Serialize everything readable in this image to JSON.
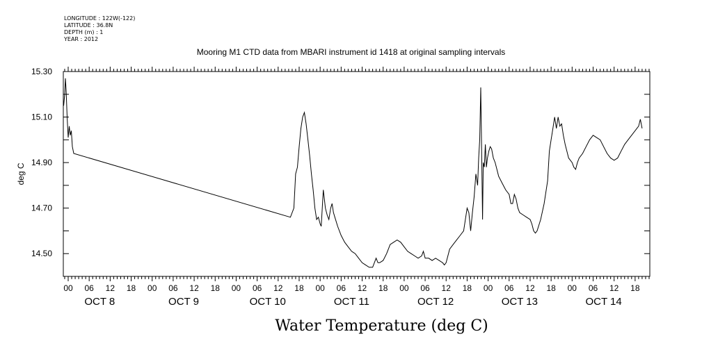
{
  "header": {
    "longitude": "LONGITUDE : 122W(-122)",
    "latitude": "LATITUDE : 36.8N",
    "depth": "DEPTH (m) : 1",
    "year": "YEAR : 2012"
  },
  "chart_data": {
    "type": "line",
    "title": "Mooring M1 CTD data from MBARI instrument id 1418 at original sampling intervals",
    "ylabel": "deg C",
    "xlabel": "Water Temperature (deg C)",
    "ylim": [
      14.4,
      15.3
    ],
    "yticks": [
      14.5,
      14.7,
      14.9,
      15.1,
      15.3
    ],
    "ytick_labels": [
      "14.50",
      "14.70",
      "14.90",
      "15.10",
      "15.30"
    ],
    "x_unit": "hours since 00:00 OCT 8",
    "xlim": [
      -1.5,
      166
    ],
    "hour_ticks": [
      0,
      6,
      12,
      18,
      24,
      30,
      36,
      42,
      48,
      54,
      60,
      66,
      72,
      78,
      84,
      90,
      96,
      102,
      108,
      114,
      120,
      126,
      132,
      138,
      144,
      150,
      156,
      162
    ],
    "hour_tick_labels": [
      "00",
      "06",
      "12",
      "18",
      "00",
      "06",
      "12",
      "18",
      "00",
      "06",
      "12",
      "18",
      "00",
      "06",
      "12",
      "18",
      "00",
      "06",
      "12",
      "18",
      "00",
      "06",
      "12",
      "18",
      "00",
      "06",
      "12",
      "18"
    ],
    "day_labels": [
      {
        "label": "OCT  8",
        "hour": 9
      },
      {
        "label": "OCT  9",
        "hour": 33
      },
      {
        "label": "OCT 10",
        "hour": 57
      },
      {
        "label": "OCT 11",
        "hour": 81
      },
      {
        "label": "OCT 12",
        "hour": 105
      },
      {
        "label": "OCT 13",
        "hour": 129
      },
      {
        "label": "OCT 14",
        "hour": 153
      }
    ],
    "series": [
      {
        "color": "#000000",
        "points": [
          [
            -1.3,
            15.15
          ],
          [
            -1.0,
            15.2
          ],
          [
            -0.8,
            15.27
          ],
          [
            -0.6,
            15.22
          ],
          [
            -0.3,
            15.1
          ],
          [
            0.0,
            15.01
          ],
          [
            0.3,
            15.06
          ],
          [
            0.6,
            15.02
          ],
          [
            0.9,
            15.04
          ],
          [
            1.2,
            14.97
          ],
          [
            1.6,
            14.94
          ],
          [
            63.5,
            14.66
          ],
          [
            64.5,
            14.7
          ],
          [
            65.0,
            14.85
          ],
          [
            65.5,
            14.88
          ],
          [
            66.0,
            14.97
          ],
          [
            66.5,
            15.05
          ],
          [
            67.0,
            15.1
          ],
          [
            67.5,
            15.12
          ],
          [
            68.0,
            15.07
          ],
          [
            68.5,
            15.0
          ],
          [
            69.0,
            14.93
          ],
          [
            69.5,
            14.85
          ],
          [
            70.0,
            14.78
          ],
          [
            70.5,
            14.7
          ],
          [
            71.0,
            14.65
          ],
          [
            71.5,
            14.66
          ],
          [
            72.0,
            14.63
          ],
          [
            72.3,
            14.62
          ],
          [
            72.6,
            14.7
          ],
          [
            72.9,
            14.78
          ],
          [
            73.2,
            14.74
          ],
          [
            73.5,
            14.7
          ],
          [
            74.0,
            14.67
          ],
          [
            74.5,
            14.65
          ],
          [
            75.0,
            14.7
          ],
          [
            75.4,
            14.72
          ],
          [
            75.8,
            14.68
          ],
          [
            76.2,
            14.66
          ],
          [
            77.0,
            14.62
          ],
          [
            78.0,
            14.58
          ],
          [
            79.0,
            14.55
          ],
          [
            80.0,
            14.53
          ],
          [
            81.0,
            14.51
          ],
          [
            82.0,
            14.5
          ],
          [
            83.0,
            14.48
          ],
          [
            84.0,
            14.46
          ],
          [
            85.0,
            14.45
          ],
          [
            86.0,
            14.44
          ],
          [
            87.0,
            14.44
          ],
          [
            87.5,
            14.46
          ],
          [
            88.0,
            14.48
          ],
          [
            88.5,
            14.46
          ],
          [
            89.0,
            14.46
          ],
          [
            90.0,
            14.47
          ],
          [
            91.0,
            14.5
          ],
          [
            92.0,
            14.54
          ],
          [
            93.0,
            14.55
          ],
          [
            94.0,
            14.56
          ],
          [
            95.0,
            14.55
          ],
          [
            96.0,
            14.53
          ],
          [
            97.0,
            14.51
          ],
          [
            98.0,
            14.5
          ],
          [
            99.0,
            14.49
          ],
          [
            100.0,
            14.48
          ],
          [
            101.0,
            14.49
          ],
          [
            101.5,
            14.51
          ],
          [
            102.0,
            14.48
          ],
          [
            103.0,
            14.48
          ],
          [
            104.0,
            14.47
          ],
          [
            105.0,
            14.48
          ],
          [
            106.0,
            14.47
          ],
          [
            107.0,
            14.46
          ],
          [
            107.5,
            14.45
          ],
          [
            108.0,
            14.46
          ],
          [
            109.0,
            14.52
          ],
          [
            110.0,
            14.54
          ],
          [
            111.0,
            14.56
          ],
          [
            112.0,
            14.58
          ],
          [
            113.0,
            14.6
          ],
          [
            113.5,
            14.65
          ],
          [
            114.0,
            14.7
          ],
          [
            114.5,
            14.68
          ],
          [
            115.0,
            14.6
          ],
          [
            115.5,
            14.68
          ],
          [
            116.0,
            14.75
          ],
          [
            116.5,
            14.85
          ],
          [
            117.0,
            14.8
          ],
          [
            117.3,
            14.92
          ],
          [
            117.6,
            15.0
          ],
          [
            117.9,
            15.23
          ],
          [
            118.2,
            14.9
          ],
          [
            118.4,
            14.65
          ],
          [
            118.6,
            14.9
          ],
          [
            118.9,
            14.88
          ],
          [
            119.2,
            14.98
          ],
          [
            119.5,
            14.88
          ],
          [
            119.8,
            14.92
          ],
          [
            120.2,
            14.95
          ],
          [
            120.6,
            14.97
          ],
          [
            121.0,
            14.96
          ],
          [
            121.5,
            14.92
          ],
          [
            122.0,
            14.9
          ],
          [
            122.5,
            14.87
          ],
          [
            123.0,
            14.84
          ],
          [
            124.0,
            14.81
          ],
          [
            125.0,
            14.78
          ],
          [
            126.0,
            14.76
          ],
          [
            126.5,
            14.72
          ],
          [
            127.0,
            14.72
          ],
          [
            127.5,
            14.76
          ],
          [
            128.0,
            14.74
          ],
          [
            128.5,
            14.7
          ],
          [
            129.0,
            14.68
          ],
          [
            130.0,
            14.67
          ],
          [
            131.0,
            14.66
          ],
          [
            132.0,
            14.65
          ],
          [
            132.5,
            14.63
          ],
          [
            133.0,
            14.6
          ],
          [
            133.5,
            14.59
          ],
          [
            134.0,
            14.6
          ],
          [
            135.0,
            14.65
          ],
          [
            136.0,
            14.72
          ],
          [
            137.0,
            14.82
          ],
          [
            137.5,
            14.95
          ],
          [
            138.0,
            15.0
          ],
          [
            138.5,
            15.05
          ],
          [
            139.0,
            15.1
          ],
          [
            139.5,
            15.05
          ],
          [
            140.0,
            15.1
          ],
          [
            140.5,
            15.06
          ],
          [
            141.0,
            15.07
          ],
          [
            141.5,
            15.02
          ],
          [
            142.0,
            14.98
          ],
          [
            142.5,
            14.95
          ],
          [
            143.0,
            14.92
          ],
          [
            143.5,
            14.91
          ],
          [
            144.0,
            14.9
          ],
          [
            144.5,
            14.88
          ],
          [
            145.0,
            14.87
          ],
          [
            145.5,
            14.9
          ],
          [
            146.0,
            14.92
          ],
          [
            147.0,
            14.94
          ],
          [
            148.0,
            14.97
          ],
          [
            149.0,
            15.0
          ],
          [
            150.0,
            15.02
          ],
          [
            151.0,
            15.01
          ],
          [
            152.0,
            15.0
          ],
          [
            153.0,
            14.97
          ],
          [
            154.0,
            14.94
          ],
          [
            155.0,
            14.92
          ],
          [
            156.0,
            14.91
          ],
          [
            157.0,
            14.92
          ],
          [
            158.0,
            14.95
          ],
          [
            159.0,
            14.98
          ],
          [
            160.0,
            15.0
          ],
          [
            161.0,
            15.02
          ],
          [
            162.0,
            15.04
          ],
          [
            163.0,
            15.06
          ],
          [
            163.5,
            15.09
          ],
          [
            164.0,
            15.05
          ]
        ]
      }
    ]
  }
}
